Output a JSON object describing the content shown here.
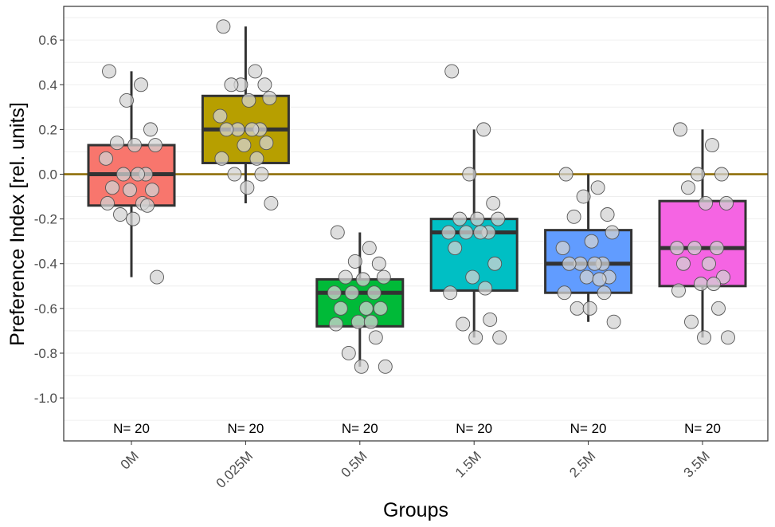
{
  "chart_data": {
    "type": "boxplot",
    "title": "",
    "xlabel": "Groups",
    "ylabel": "Preference Index [rel. units]",
    "ylim": [
      -1.19,
      0.76
    ],
    "yticks": [
      0.6,
      0.4,
      0.2,
      0.0,
      -0.2,
      -0.4,
      -0.6,
      -0.8,
      -1.0
    ],
    "ytick_labels": [
      "0.6",
      "0.4",
      "0.2",
      "0.0",
      "-0.2",
      "-0.4",
      "-0.6",
      "-0.8",
      "-1.0"
    ],
    "grid": true,
    "legend": "none",
    "reference_line": {
      "y": 0.0,
      "color": "#8B6A00"
    },
    "point_color": "#d3d3d3",
    "groups": [
      {
        "name": "0M",
        "n_label": "N= 20",
        "color": "#F8766D",
        "q1": -0.14,
        "median": 0.0,
        "q3": 0.13,
        "whisker_low": -0.46,
        "whisker_high": 0.46,
        "points": [
          0.46,
          0.4,
          0.33,
          0.2,
          0.14,
          0.13,
          0.13,
          0.07,
          0.0,
          0.0,
          0.0,
          -0.06,
          -0.07,
          -0.07,
          -0.13,
          -0.13,
          -0.14,
          -0.18,
          -0.2,
          -0.46
        ]
      },
      {
        "name": "0.025M",
        "n_label": "N= 20",
        "color": "#B79F00",
        "q1": 0.05,
        "median": 0.2,
        "q3": 0.35,
        "whisker_low": -0.13,
        "whisker_high": 0.66,
        "points": [
          0.66,
          0.46,
          0.4,
          0.4,
          0.4,
          0.34,
          0.33,
          0.26,
          0.2,
          0.2,
          0.2,
          0.2,
          0.14,
          0.13,
          0.07,
          0.07,
          0.0,
          0.0,
          -0.06,
          -0.13
        ]
      },
      {
        "name": "0.5M",
        "n_label": "N= 20",
        "color": "#00BA38",
        "q1": -0.68,
        "median": -0.53,
        "q3": -0.47,
        "whisker_low": -0.86,
        "whisker_high": -0.26,
        "points": [
          -0.26,
          -0.33,
          -0.39,
          -0.4,
          -0.46,
          -0.46,
          -0.47,
          -0.53,
          -0.53,
          -0.53,
          -0.6,
          -0.6,
          -0.6,
          -0.66,
          -0.66,
          -0.67,
          -0.73,
          -0.8,
          -0.86,
          -0.86
        ]
      },
      {
        "name": "1.5M",
        "n_label": "N= 20",
        "color": "#00BFC4",
        "q1": -0.52,
        "median": -0.26,
        "q3": -0.2,
        "whisker_low": -0.73,
        "whisker_high": 0.2,
        "points": [
          0.46,
          0.2,
          0.0,
          -0.13,
          -0.2,
          -0.2,
          -0.2,
          -0.26,
          -0.26,
          -0.26,
          -0.26,
          -0.33,
          -0.4,
          -0.46,
          -0.51,
          -0.53,
          -0.65,
          -0.67,
          -0.73,
          -0.73
        ]
      },
      {
        "name": "2.5M",
        "n_label": "N= 20",
        "color": "#619CFF",
        "q1": -0.53,
        "median": -0.4,
        "q3": -0.25,
        "whisker_low": -0.66,
        "whisker_high": 0.0,
        "points": [
          0.0,
          -0.06,
          -0.1,
          -0.18,
          -0.19,
          -0.26,
          -0.3,
          -0.33,
          -0.4,
          -0.4,
          -0.4,
          -0.4,
          -0.46,
          -0.46,
          -0.47,
          -0.53,
          -0.53,
          -0.6,
          -0.6,
          -0.66
        ]
      },
      {
        "name": "3.5M",
        "n_label": "N= 20",
        "color": "#F564E3",
        "q1": -0.5,
        "median": -0.33,
        "q3": -0.12,
        "whisker_low": -0.73,
        "whisker_high": 0.2,
        "points": [
          0.2,
          0.13,
          0.0,
          0.0,
          -0.06,
          -0.13,
          -0.13,
          -0.33,
          -0.33,
          -0.33,
          -0.4,
          -0.4,
          -0.46,
          -0.49,
          -0.49,
          -0.52,
          -0.6,
          -0.66,
          -0.73,
          -0.73
        ]
      }
    ]
  }
}
